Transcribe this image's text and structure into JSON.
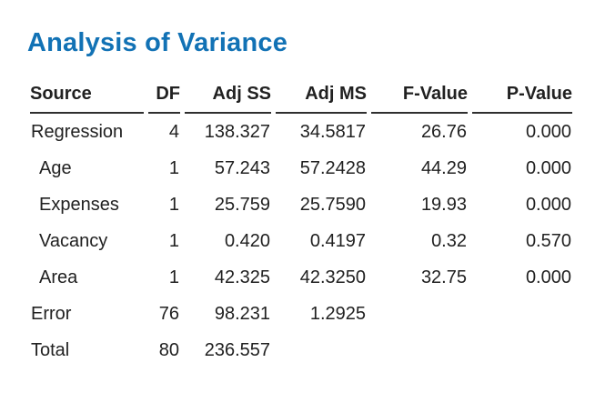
{
  "page": {
    "title": "Analysis of Variance"
  },
  "colors": {
    "title_blue": "#1272b5",
    "text": "#212121",
    "header_rule": "#2f2f2f",
    "background": "#ffffff"
  },
  "table": {
    "columns": [
      {
        "label": "Source",
        "align": "left"
      },
      {
        "label": "DF",
        "align": "right"
      },
      {
        "label": "Adj SS",
        "align": "right"
      },
      {
        "label": "Adj MS",
        "align": "right"
      },
      {
        "label": "F-Value",
        "align": "right"
      },
      {
        "label": "P-Value",
        "align": "right"
      }
    ],
    "rows": [
      {
        "source": "Regression",
        "indent": false,
        "df": "4",
        "adj_ss": "138.327",
        "adj_ms": "34.5817",
        "f_value": "26.76",
        "p_value": "0.000"
      },
      {
        "source": "Age",
        "indent": true,
        "df": "1",
        "adj_ss": "57.243",
        "adj_ms": "57.2428",
        "f_value": "44.29",
        "p_value": "0.000"
      },
      {
        "source": "Expenses",
        "indent": true,
        "df": "1",
        "adj_ss": "25.759",
        "adj_ms": "25.7590",
        "f_value": "19.93",
        "p_value": "0.000"
      },
      {
        "source": "Vacancy",
        "indent": true,
        "df": "1",
        "adj_ss": "0.420",
        "adj_ms": "0.4197",
        "f_value": "0.32",
        "p_value": "0.570"
      },
      {
        "source": "Area",
        "indent": true,
        "df": "1",
        "adj_ss": "42.325",
        "adj_ms": "42.3250",
        "f_value": "32.75",
        "p_value": "0.000"
      },
      {
        "source": "Error",
        "indent": false,
        "df": "76",
        "adj_ss": "98.231",
        "adj_ms": "1.2925",
        "f_value": "",
        "p_value": ""
      },
      {
        "source": "Total",
        "indent": false,
        "df": "80",
        "adj_ss": "236.557",
        "adj_ms": "",
        "f_value": "",
        "p_value": ""
      }
    ]
  }
}
